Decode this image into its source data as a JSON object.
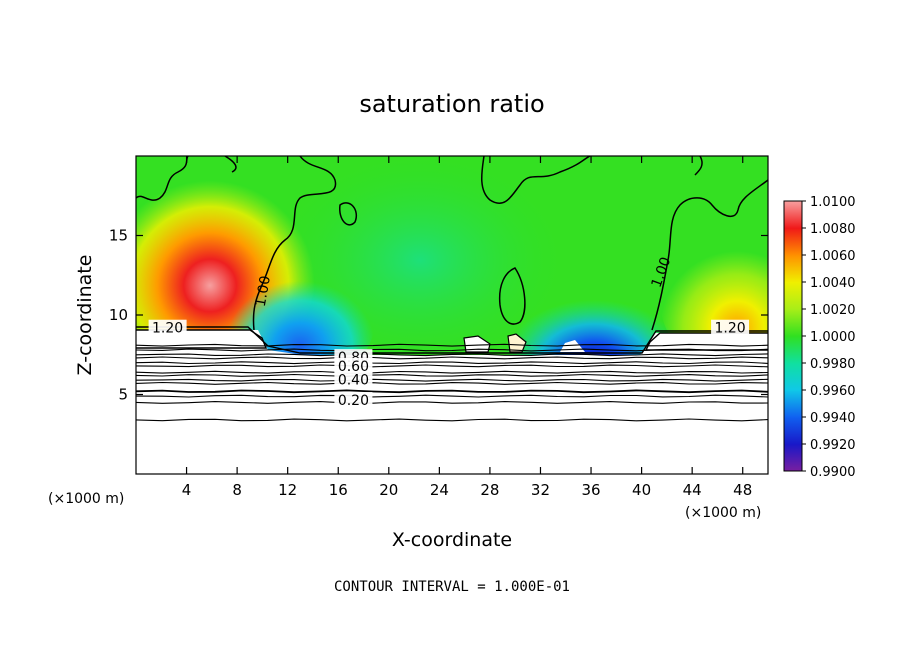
{
  "chart_data": {
    "type": "heatmap",
    "title": "saturation ratio",
    "xlabel": "X-coordinate",
    "ylabel": "Z-coordinate",
    "x_unit_label_left": "(×1000 m)",
    "x_unit_label_right": "(×1000 m)",
    "xlim": [
      0,
      50
    ],
    "ylim": [
      0,
      20
    ],
    "x_ticks": [
      4,
      8,
      12,
      16,
      20,
      24,
      28,
      32,
      36,
      40,
      44,
      48
    ],
    "x_tick_labels": [
      "4",
      "8",
      "12",
      "16",
      "20",
      "24",
      "28",
      "32",
      "36",
      "40",
      "44",
      "48"
    ],
    "y_ticks": [
      5,
      10,
      15
    ],
    "y_tick_labels": [
      "5",
      "10",
      "15"
    ],
    "colorbar": {
      "levels": [
        0.99,
        0.992,
        0.994,
        0.996,
        0.998,
        1.0,
        1.002,
        1.004,
        1.006,
        1.008,
        1.01
      ],
      "labels": [
        "0.9900",
        "0.9920",
        "0.9940",
        "0.9960",
        "0.9980",
        "1.0000",
        "1.0020",
        "1.0040",
        "1.0060",
        "1.0080",
        "1.0100"
      ],
      "colors": [
        "#7a1fa0",
        "#1818c8",
        "#1060f0",
        "#10c8e8",
        "#10e0a0",
        "#30e020",
        "#a8ee18",
        "#f0f000",
        "#ff9000",
        "#f01818",
        "#f8a0a0"
      ]
    },
    "contour_labels": [
      {
        "text": "1.20",
        "x": 2.5,
        "y": 9.2
      },
      {
        "text": "1.20",
        "x": 47.0,
        "y": 9.2
      },
      {
        "text": "1.00",
        "x": 10.0,
        "y": 11.5
      },
      {
        "text": "1.00",
        "x": 41.5,
        "y": 12.7
      },
      {
        "text": "0.80",
        "x": 17.2,
        "y": 7.35
      },
      {
        "text": "0.60",
        "x": 17.2,
        "y": 6.8
      },
      {
        "text": "0.40",
        "x": 17.2,
        "y": 5.95
      },
      {
        "text": "0.20",
        "x": 17.2,
        "y": 4.65
      }
    ],
    "low_level_contours": [
      8.1,
      7.8,
      7.5,
      7.3,
      7.0,
      6.8,
      6.4,
      6.2,
      5.9,
      5.7,
      5.2,
      4.9,
      4.5,
      3.4
    ],
    "cloud_base_height": 7.6,
    "regions": [
      {
        "name": "maximum left",
        "x": 6.2,
        "y": 10.5,
        "level": 1.008
      },
      {
        "name": "maximum right",
        "x": 46.0,
        "y": 9.8,
        "level": 1.005
      },
      {
        "name": "minimum left",
        "x": 13.0,
        "y": 9.0,
        "level": 0.994
      },
      {
        "name": "minimum right",
        "x": 35.0,
        "y": 8.6,
        "level": 0.992
      }
    ],
    "footer": "CONTOUR INTERVAL = 1.000E-01"
  }
}
